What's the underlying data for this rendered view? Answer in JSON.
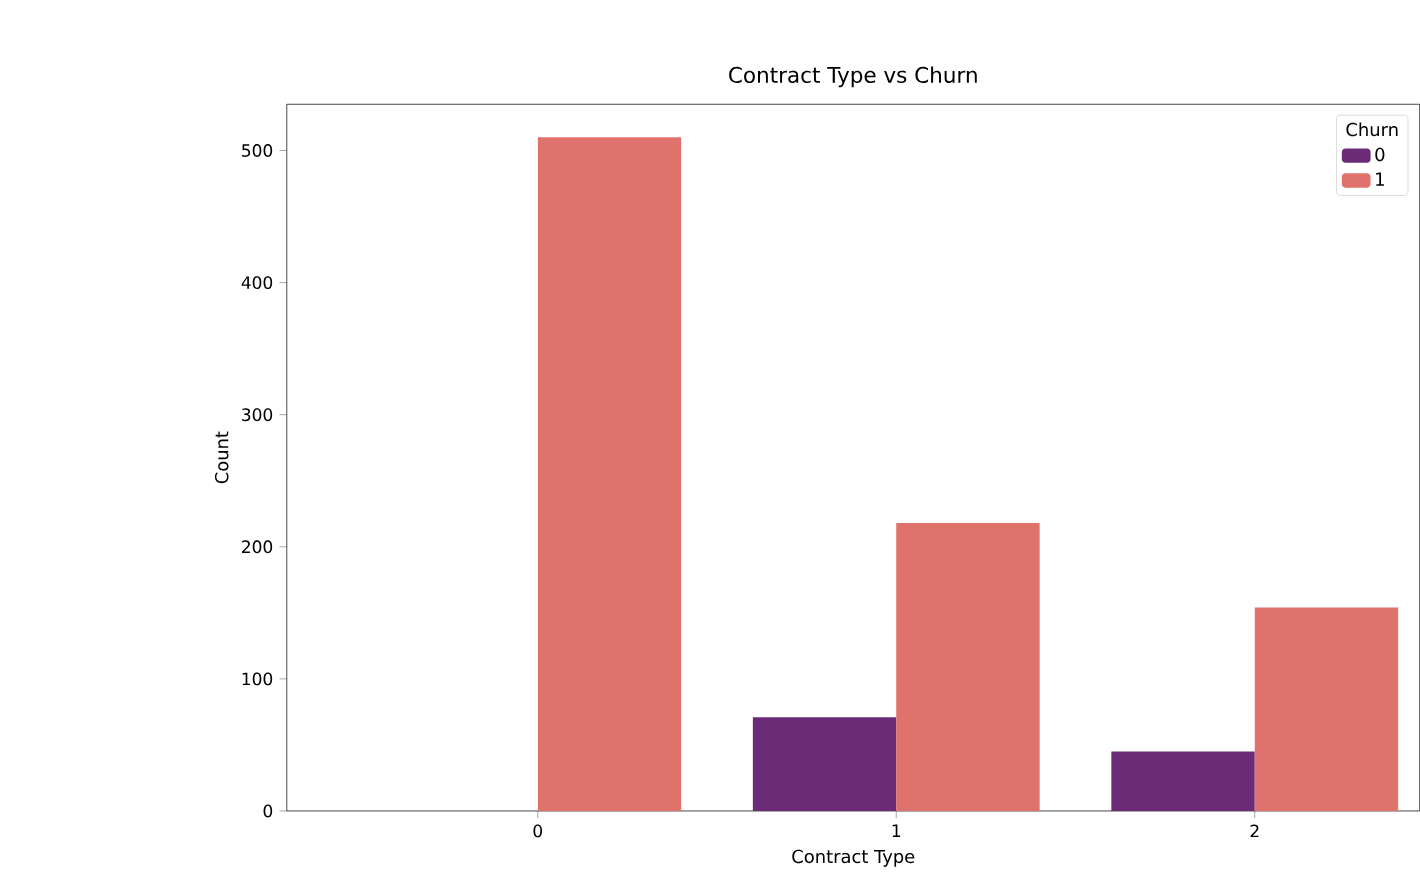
{
  "chart_data": {
    "type": "bar",
    "title": "Contract Type vs Churn",
    "xlabel": "Contract Type",
    "ylabel": "Count",
    "legend_title": "Churn",
    "categories": [
      "0",
      "1",
      "2"
    ],
    "series": [
      {
        "name": "0",
        "color": "#6b2b77",
        "values": [
          0,
          71,
          45
        ]
      },
      {
        "name": "1",
        "color": "#e0726e",
        "values": [
          510,
          218,
          154
        ]
      }
    ],
    "ylim": [
      0,
      535
    ],
    "yticks": [
      0,
      100,
      200,
      300,
      400,
      500
    ],
    "legend": "top right",
    "grid": false
  }
}
